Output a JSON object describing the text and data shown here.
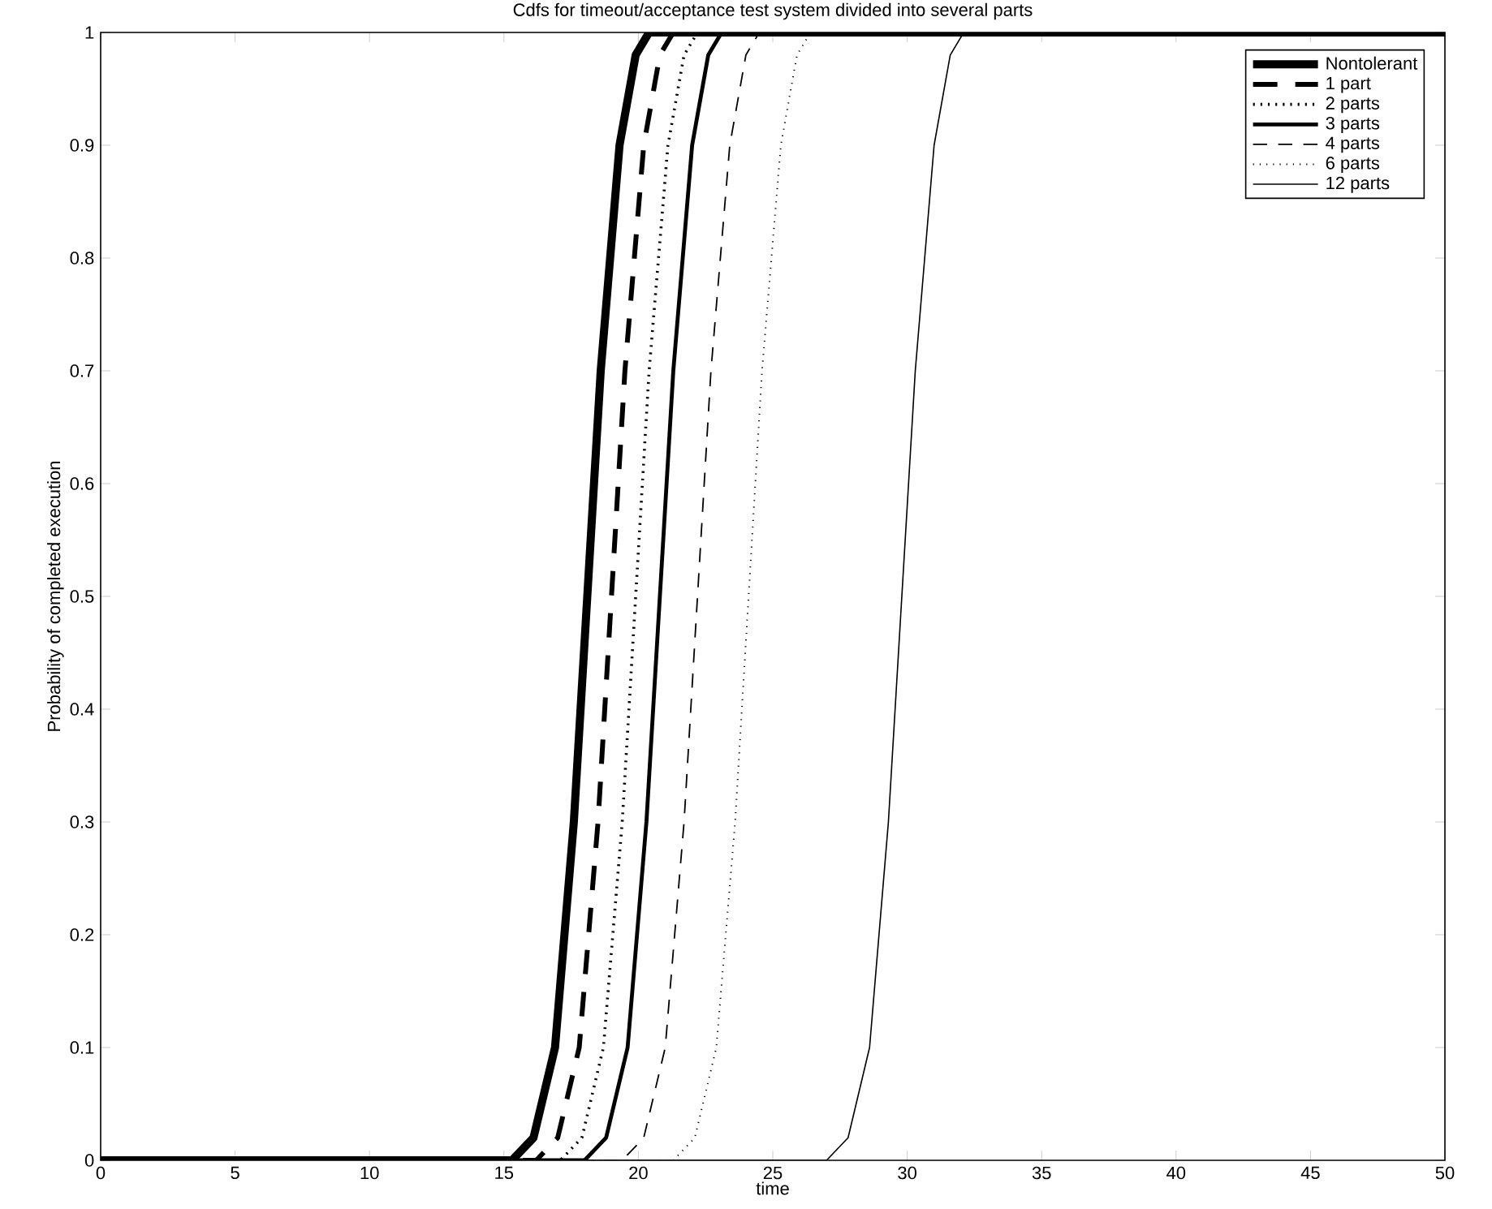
{
  "chart_data": {
    "type": "line",
    "title": "Cdfs for timeout/acceptance test system divided into several parts",
    "xlabel": "time",
    "ylabel": "Probability of completed execution",
    "xlim": [
      0,
      50
    ],
    "ylim": [
      0,
      1
    ],
    "xticks": [
      0,
      5,
      10,
      15,
      20,
      25,
      30,
      35,
      40,
      45,
      50
    ],
    "yticks": [
      0,
      0.1,
      0.2,
      0.3,
      0.4,
      0.5,
      0.6,
      0.7,
      0.8,
      0.9,
      1
    ],
    "legend": "top right",
    "grid": false,
    "series": [
      {
        "name": "Nontolerant",
        "color": "#000000",
        "line_style": "solid",
        "x": [
          0,
          15.3,
          16.1,
          16.9,
          17.6,
          18.1,
          18.6,
          19.3,
          19.9,
          20.4,
          50
        ],
        "values": [
          0,
          0,
          0.02,
          0.1,
          0.3,
          0.5,
          0.7,
          0.9,
          0.98,
          1,
          1
        ]
      },
      {
        "name": "1 part",
        "color": "#000000",
        "line_style": "dashed",
        "x": [
          0,
          16.2,
          17.0,
          17.8,
          18.5,
          19.0,
          19.5,
          20.2,
          20.8,
          21.3,
          50
        ],
        "values": [
          0,
          0,
          0.02,
          0.1,
          0.3,
          0.5,
          0.7,
          0.9,
          0.98,
          1,
          1
        ]
      },
      {
        "name": "2 parts",
        "color": "#000000",
        "line_style": "dotted",
        "x": [
          0,
          17.1,
          17.9,
          18.7,
          19.4,
          19.9,
          20.4,
          21.1,
          21.7,
          22.2,
          50
        ],
        "values": [
          0,
          0,
          0.02,
          0.1,
          0.3,
          0.5,
          0.7,
          0.9,
          0.98,
          1,
          1
        ]
      },
      {
        "name": "3 parts",
        "color": "#000000",
        "line_style": "solid",
        "x": [
          0,
          18.0,
          18.8,
          19.6,
          20.3,
          20.8,
          21.3,
          22.0,
          22.6,
          23.1,
          50
        ],
        "values": [
          0,
          0,
          0.02,
          0.1,
          0.3,
          0.5,
          0.7,
          0.9,
          0.98,
          1,
          1
        ]
      },
      {
        "name": "4 parts",
        "color": "#000000",
        "line_style": "dashed",
        "x": [
          0,
          19.4,
          20.2,
          21.0,
          21.7,
          22.2,
          22.7,
          23.4,
          24.0,
          24.5,
          50
        ],
        "values": [
          0,
          0,
          0.02,
          0.1,
          0.3,
          0.5,
          0.7,
          0.9,
          0.98,
          1,
          1
        ]
      },
      {
        "name": "6 parts",
        "color": "#000000",
        "line_style": "dotted",
        "x": [
          0,
          21.3,
          22.1,
          22.9,
          23.6,
          24.1,
          24.6,
          25.3,
          25.9,
          26.4,
          50
        ],
        "values": [
          0,
          0,
          0.02,
          0.1,
          0.3,
          0.5,
          0.7,
          0.9,
          0.98,
          1,
          1
        ]
      },
      {
        "name": "12 parts",
        "color": "#000000",
        "line_style": "solid",
        "x": [
          0,
          27.0,
          27.8,
          28.6,
          29.3,
          29.8,
          30.3,
          31.0,
          31.6,
          32.1,
          50
        ],
        "values": [
          0,
          0,
          0.02,
          0.1,
          0.3,
          0.5,
          0.7,
          0.9,
          0.98,
          1,
          1
        ]
      }
    ]
  }
}
